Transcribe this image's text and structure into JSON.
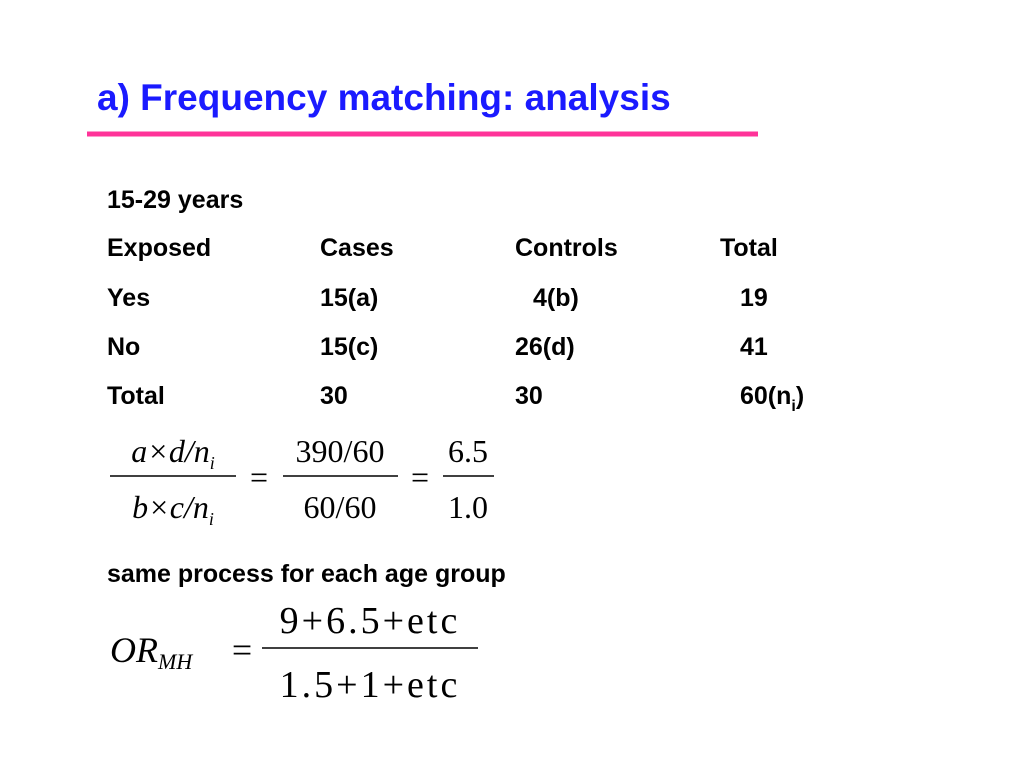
{
  "title": "a) Frequency matching: analysis",
  "subtitle": "15-29 years",
  "table": {
    "header": [
      "Exposed",
      "Cases",
      "Controls",
      "Total"
    ],
    "rows": [
      [
        "Yes",
        "15(a)",
        "4(b)",
        "19"
      ],
      [
        "No",
        "15(c)",
        "26(d)",
        "41"
      ],
      [
        "Total",
        "30",
        "30",
        {
          "text": "60(n",
          "sub": "i",
          "after": ")"
        }
      ]
    ]
  },
  "formula1": {
    "equals": "=",
    "fractions": [
      {
        "num": {
          "text": "a×d/n",
          "sub": "i"
        },
        "den": {
          "text": "b×c/n",
          "sub": "i"
        }
      },
      {
        "num": "390/60",
        "den": "60/60"
      },
      {
        "num": "6.5",
        "den": "1.0"
      }
    ]
  },
  "note": "same process for each age group",
  "formula2": {
    "lhs": {
      "text": "OR",
      "sub": "MH"
    },
    "equals": "=",
    "num": "9+6.5+etc",
    "den": "1.5+1+etc"
  }
}
